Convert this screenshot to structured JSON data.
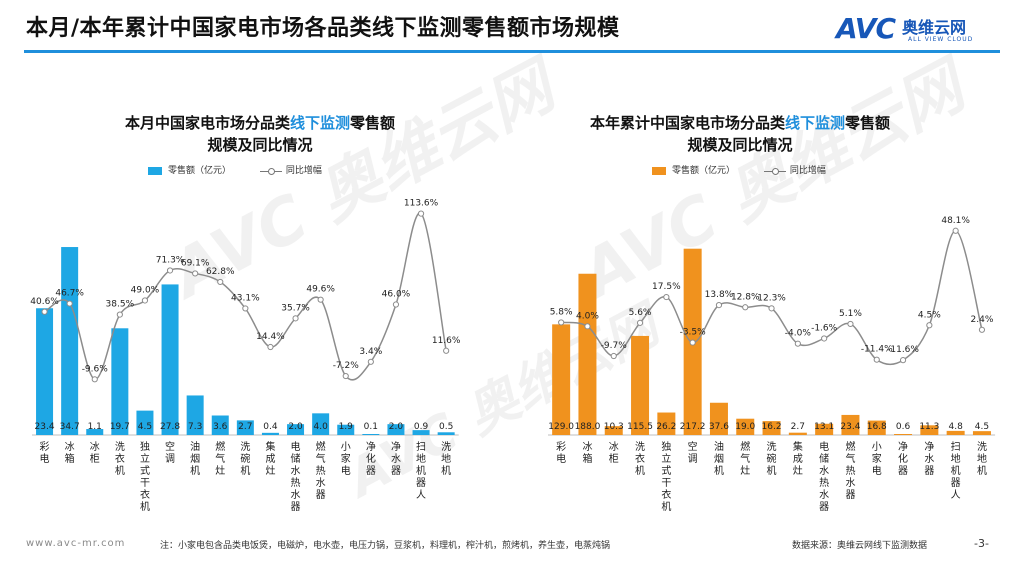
{
  "page": {
    "title": "本月/本年累计中国家电市场各品类线下监测零售额市场规模",
    "logo_mark": "AVC",
    "logo_cn": "奥维云网",
    "logo_en": "ALL VIEW CLOUD",
    "watermark": "AVC 奥维云网",
    "footer_web": "www.avc-mr.com",
    "footer_note": "注：小家电包含品类电饭煲，电磁炉，电水壶，电压力锅，豆浆机，料理机，榨汁机，煎烤机，养生壶，电蒸炖锅",
    "footer_source": "数据来源：奥维云网线下监测数据",
    "page_number": "-3-"
  },
  "colors": {
    "accent": "#1f8fdc",
    "month_bar": "#1ea7e4",
    "year_bar": "#f0921e",
    "line": "#8c8c8c"
  },
  "chart_data": [
    {
      "type": "bar",
      "title_pre": "本月中国家电市场分品类",
      "title_hl": "线下监测",
      "title_post": "零售额",
      "title_line2": "规模及同比情况",
      "legend_bar": "零售额（亿元）",
      "legend_line": "同比增幅",
      "categories": [
        "彩电",
        "冰箱",
        "冰柜",
        "洗衣机",
        "独立式干衣机",
        "空调",
        "油烟机",
        "燃气灶",
        "洗碗机",
        "集成灶",
        "电储水热水器",
        "燃气热水器",
        "小家电",
        "净化器",
        "净水器",
        "扫地机器人",
        "洗地机"
      ],
      "series": [
        {
          "name": "零售额（亿元）",
          "kind": "bar",
          "values": [
            23.4,
            34.7,
            1.1,
            19.7,
            4.5,
            27.8,
            7.3,
            3.6,
            2.7,
            0.4,
            2.0,
            4.0,
            1.9,
            0.1,
            2.0,
            0.9,
            0.5
          ],
          "labels": [
            "23.4",
            "34.7",
            "1.1",
            "19.7",
            "4.5",
            "27.8",
            "7.3",
            "3.6",
            "2.7",
            "0.4",
            "2.0",
            "4.0",
            "1.9",
            "0.1",
            "2.0",
            "0.9",
            "0.5"
          ]
        },
        {
          "name": "同比增幅",
          "kind": "line",
          "values": [
            40.6,
            46.7,
            -9.6,
            38.5,
            49.0,
            71.3,
            69.1,
            62.8,
            43.1,
            14.4,
            35.7,
            49.6,
            -7.2,
            3.4,
            46.0,
            113.6,
            11.6
          ],
          "labels": [
            "40.6%",
            "46.7%",
            "-9.6%",
            "38.5%",
            "49.0%",
            "71.3%",
            "69.1%",
            "62.8%",
            "43.1%",
            "14.4%",
            "35.7%",
            "49.6%",
            "-7.2%",
            "3.4%",
            "46.0%",
            "113.6%",
            "11.6%"
          ]
        }
      ],
      "bar_ylim": [
        0,
        36
      ],
      "line_ylim": [
        -25,
        120
      ]
    },
    {
      "type": "bar",
      "title_pre": "本年累计中国家电市场分品类",
      "title_hl": "线下监测",
      "title_post": "零售额",
      "title_line2": "规模及同比情况",
      "legend_bar": "零售额（亿元）",
      "legend_line": "同比增幅",
      "categories": [
        "彩电",
        "冰箱",
        "冰柜",
        "洗衣机",
        "独立式干衣机",
        "空调",
        "油烟机",
        "燃气灶",
        "洗碗机",
        "集成灶",
        "电储水热水器",
        "燃气热水器",
        "小家电",
        "净化器",
        "净水器",
        "扫地机器人",
        "洗地机"
      ],
      "series": [
        {
          "name": "零售额（亿元）",
          "kind": "bar",
          "values": [
            129.0,
            188.0,
            10.3,
            115.5,
            26.2,
            217.2,
            37.6,
            19.0,
            16.2,
            2.7,
            13.1,
            23.4,
            16.8,
            0.6,
            11.3,
            4.8,
            4.5
          ],
          "labels": [
            "129.0",
            "188.0",
            "10.3",
            "115.5",
            "26.2",
            "217.2",
            "37.6",
            "19.0",
            "16.2",
            "2.7",
            "13.1",
            "23.4",
            "16.8",
            "0.6",
            "11.3",
            "4.8",
            "4.5"
          ]
        },
        {
          "name": "同比增幅",
          "kind": "line",
          "values": [
            5.8,
            4.0,
            -9.7,
            5.6,
            17.5,
            -3.5,
            13.8,
            12.8,
            12.3,
            -4.0,
            -1.6,
            5.1,
            -11.4,
            -11.6,
            4.5,
            48.1,
            2.4
          ],
          "labels": [
            "5.8%",
            "4.0%",
            "-9.7%",
            "5.6%",
            "17.5%",
            "-3.5%",
            "13.8%",
            "12.8%",
            "12.3%",
            "-4.0%",
            "-1.6%",
            "5.1%",
            "-11.4%",
            "-11.6%",
            "4.5%",
            "48.1%",
            "2.4%"
          ]
        }
      ],
      "bar_ylim": [
        0,
        225
      ],
      "line_ylim": [
        -30,
        60
      ]
    }
  ]
}
